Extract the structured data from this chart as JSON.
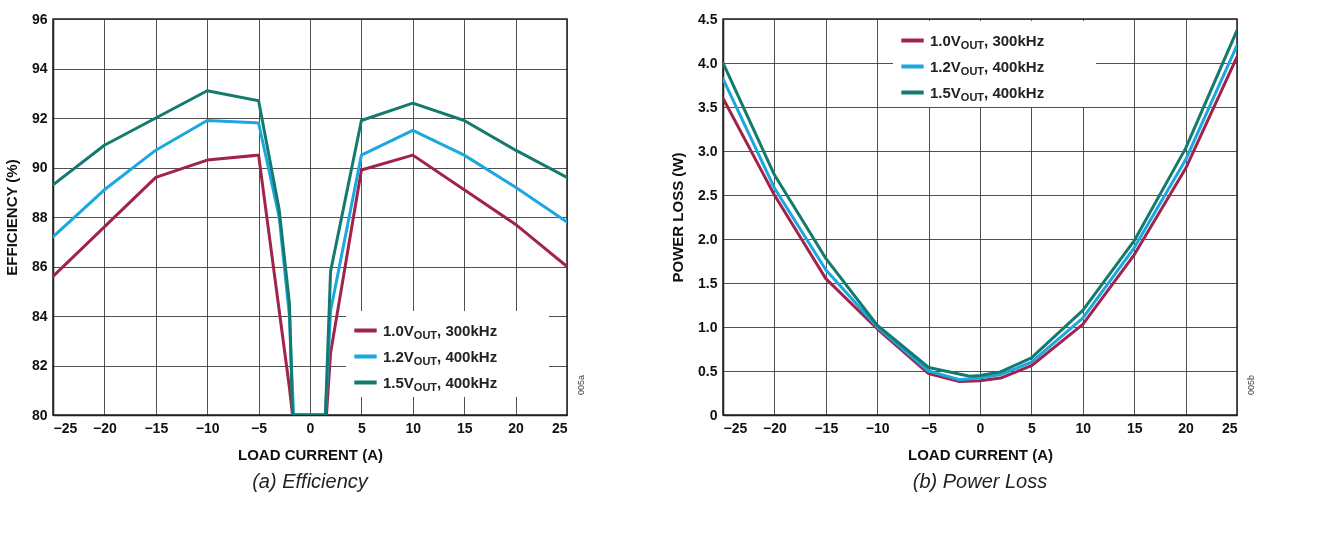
{
  "chart_data": [
    {
      "type": "line",
      "title": "(a)    Efficiency",
      "xlabel": "LOAD CURRENT (A)",
      "ylabel": "EFFICIENCY (%)",
      "xlim": [
        -25,
        25
      ],
      "ylim": [
        80,
        96
      ],
      "xticks": [
        -25,
        -20,
        -15,
        -10,
        -5,
        0,
        5,
        10,
        15,
        20,
        25
      ],
      "yticks": [
        80,
        82,
        84,
        86,
        88,
        90,
        92,
        94,
        96
      ],
      "grid": true,
      "legend": "bottom right",
      "annotations": [
        "005a"
      ],
      "series": [
        {
          "name": "1.0V$_{OUT}$, 300kHz",
          "color": "#a0234a",
          "x": [
            -25,
            -20,
            -15,
            -10,
            -5,
            -2,
            -1.7,
            1.6,
            2,
            5,
            10,
            15,
            20,
            25
          ],
          "values": [
            85.6,
            87.6,
            89.6,
            90.3,
            90.5,
            81.1,
            80,
            80,
            82.5,
            89.9,
            90.5,
            89.1,
            87.7,
            86.0
          ]
        },
        {
          "name": "1.2V$_{OUT}$, 400kHz",
          "color": "#1ba7e0",
          "x": [
            -25,
            -20,
            -15,
            -10,
            -5,
            -3,
            -2,
            -1.6,
            1.5,
            2,
            5,
            10,
            15,
            20,
            25
          ],
          "values": [
            87.2,
            89.1,
            90.7,
            91.9,
            91.8,
            88.0,
            84.0,
            80,
            80,
            84.2,
            90.5,
            91.5,
            90.5,
            89.2,
            87.8
          ]
        },
        {
          "name": "1.5V$_{OUT}$, 400kHz",
          "color": "#137a6e",
          "x": [
            -25,
            -20,
            -15,
            -10,
            -5,
            -3,
            -2,
            -1.7,
            1.5,
            2,
            5,
            10,
            15,
            20,
            25
          ],
          "values": [
            89.3,
            90.9,
            92.0,
            93.1,
            92.7,
            88.3,
            84.5,
            80,
            80,
            85.8,
            91.9,
            92.6,
            91.9,
            90.7,
            89.6
          ]
        }
      ]
    },
    {
      "type": "line",
      "title": "(b)    Power Loss",
      "xlabel": "LOAD CURRENT (A)",
      "ylabel": "POWER LOSS (W)",
      "xlim": [
        -25,
        25
      ],
      "ylim": [
        0,
        4.5
      ],
      "xticks": [
        -25,
        -20,
        -15,
        -10,
        -5,
        0,
        5,
        10,
        15,
        20,
        25
      ],
      "yticks": [
        {
          "value": 0,
          "label": "0"
        },
        0.5,
        {
          "value": 1,
          "label": "1.0"
        },
        1.5,
        {
          "value": 2,
          "label": "2.0"
        },
        2.5,
        {
          "value": 3,
          "label": "3.0"
        },
        3.5,
        {
          "value": 4,
          "label": "4.0"
        },
        4.5
      ],
      "grid": true,
      "legend": "top",
      "annotations": [
        "005b"
      ],
      "series": [
        {
          "name": "1.0V$_{OUT}$, 300kHz",
          "color": "#a0234a",
          "x": [
            -25,
            -20,
            -15,
            -10,
            -5,
            -2,
            0,
            2,
            5,
            10,
            15,
            20,
            25
          ],
          "values": [
            3.6,
            2.5,
            1.55,
            0.98,
            0.47,
            0.38,
            0.39,
            0.42,
            0.56,
            1.03,
            1.82,
            2.8,
            4.07
          ]
        },
        {
          "name": "1.2V$_{OUT}$, 400kHz",
          "color": "#1ba7e0",
          "x": [
            -25,
            -20,
            -15,
            -10,
            -5,
            -2,
            0,
            2,
            5,
            10,
            15,
            20,
            25
          ],
          "values": [
            3.82,
            2.58,
            1.65,
            1.0,
            0.5,
            0.4,
            0.42,
            0.46,
            0.6,
            1.1,
            1.9,
            2.9,
            4.2
          ]
        },
        {
          "name": "1.5V$_{OUT}$, 400kHz",
          "color": "#137a6e",
          "x": [
            -25,
            -20,
            -15,
            -10,
            -5,
            -1,
            0,
            2,
            5,
            10,
            15,
            20,
            25
          ],
          "values": [
            4.0,
            2.73,
            1.78,
            1.02,
            0.54,
            0.44,
            0.45,
            0.49,
            0.65,
            1.19,
            1.98,
            3.03,
            4.37
          ]
        }
      ]
    }
  ]
}
